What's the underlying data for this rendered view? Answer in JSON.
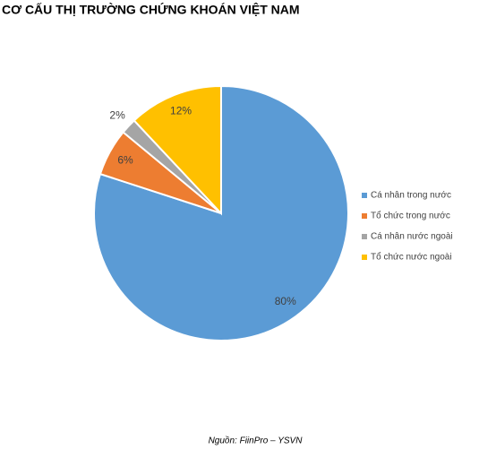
{
  "chart_data": {
    "type": "pie",
    "title": "CƠ CẤU THỊ TRƯỜNG CHỨNG KHOÁN VIỆT NAM",
    "categories": [
      "Cá nhân trong nước",
      "Tổ chức trong nước",
      "Cá nhân nước ngoài",
      "Tổ chức nước ngoài"
    ],
    "values": [
      80,
      6,
      2,
      12
    ],
    "value_labels": [
      "80%",
      "6%",
      "2%",
      "12%"
    ],
    "colors": [
      "#5b9bd5",
      "#ed7d31",
      "#a5a5a5",
      "#ffc000"
    ],
    "legend": "right",
    "source": "Nguồn: FiinPro – YSVN"
  }
}
